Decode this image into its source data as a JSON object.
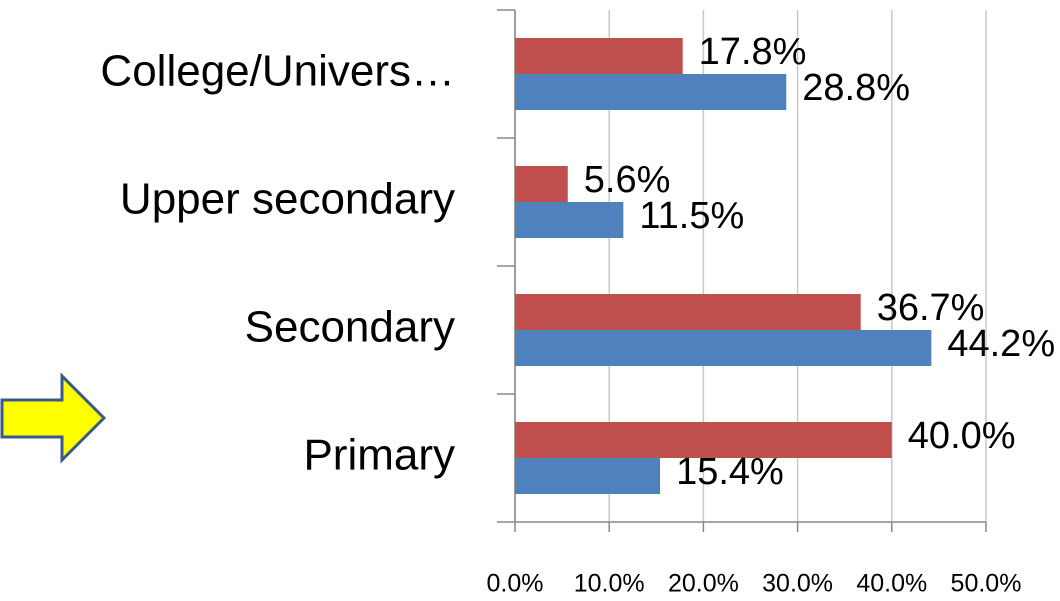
{
  "chart_data": {
    "type": "bar",
    "orientation": "horizontal",
    "categories": [
      "College/Univers…",
      "Upper secondary",
      "Secondary",
      "Primary"
    ],
    "series": [
      {
        "color": "#c0504d",
        "values": [
          17.8,
          5.6,
          36.7,
          40.0
        ],
        "value_labels": [
          "17.8%",
          "5.6%",
          "36.7%",
          "40.0%"
        ]
      },
      {
        "color": "#4f81bd",
        "values": [
          28.8,
          11.5,
          44.2,
          15.4
        ],
        "value_labels": [
          "28.8%",
          "11.5%",
          "44.2%",
          "15.4%"
        ]
      }
    ],
    "xlim": [
      0,
      50
    ],
    "xticks": [
      {
        "value": 0,
        "label": "0.0%"
      },
      {
        "value": 10,
        "label": "10.0%"
      },
      {
        "value": 20,
        "label": "20.0%"
      },
      {
        "value": 30,
        "label": "30.0%"
      },
      {
        "value": 40,
        "label": "40.0%"
      },
      {
        "value": 50,
        "label": "50.0%"
      }
    ],
    "grid": true
  }
}
